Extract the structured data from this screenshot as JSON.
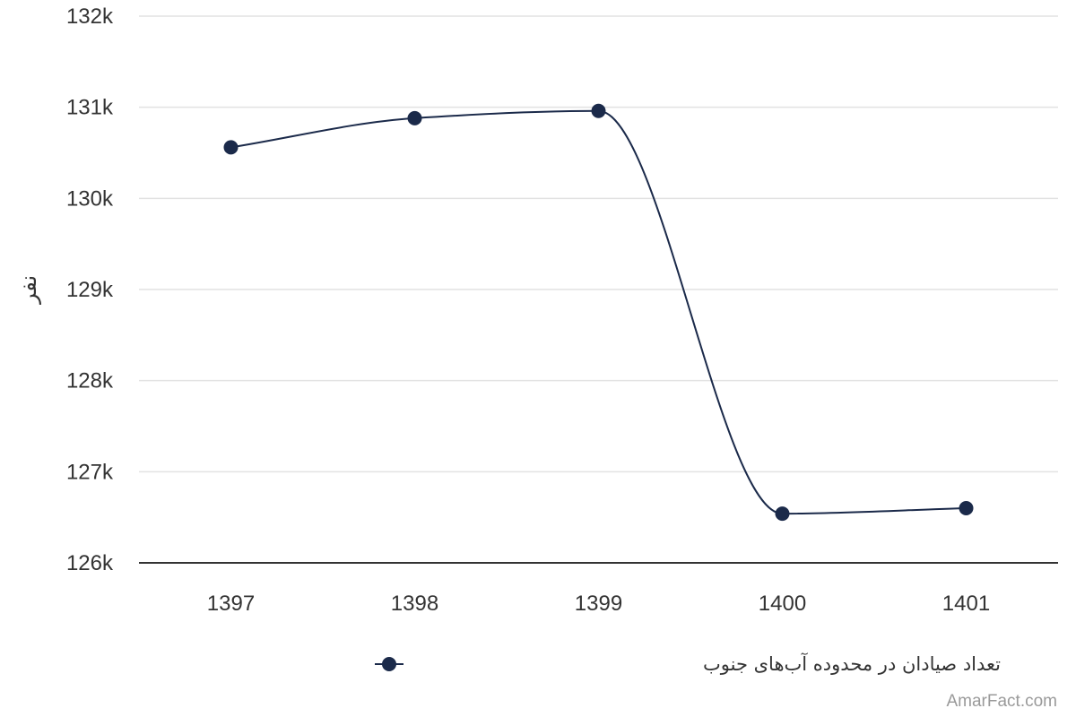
{
  "chart_data": {
    "type": "line",
    "x": [
      "1397",
      "1398",
      "1399",
      "1400",
      "1401"
    ],
    "series": [
      {
        "name": "تعداد صیادان در محدوده آب‌های جنوب",
        "values": [
          130560,
          130880,
          130960,
          126540,
          126600
        ],
        "color": "#1b2a4a"
      }
    ],
    "ylim": [
      126000,
      132000
    ],
    "yticks": [
      126000,
      127000,
      128000,
      129000,
      130000,
      131000,
      132000
    ],
    "ytick_labels": [
      "126k",
      "127k",
      "128k",
      "129k",
      "130k",
      "131k",
      "132k"
    ],
    "ylabel": "نفر",
    "xlabel": "",
    "title": "",
    "grid": true,
    "legend": "bottom-center",
    "curve": "smooth"
  },
  "watermark": "AmarFact.com"
}
